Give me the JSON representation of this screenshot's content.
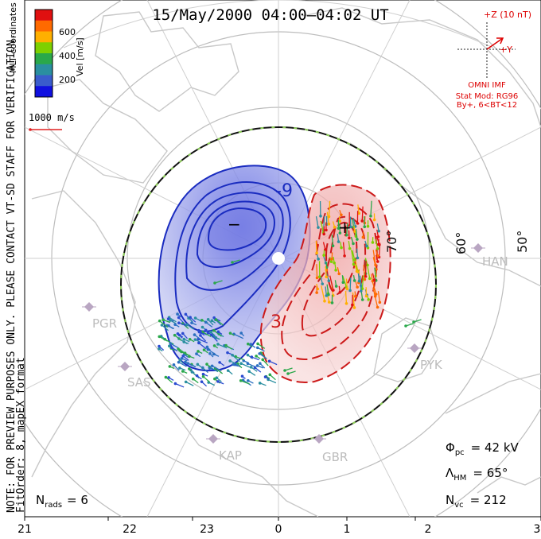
{
  "title": "15/May/2000 04:00–04:02 UT",
  "coord_label": "MLT coordinates",
  "colorbar": {
    "axis_label": "Vel [m/s]",
    "ticks": [
      "600",
      "400",
      "200"
    ],
    "colors": [
      "#e01010",
      "#ff6a00",
      "#ffb000",
      "#7ed000",
      "#2aa84a",
      "#2a8fa0",
      "#3a5ccc",
      "#1010e0"
    ]
  },
  "ref_vector": {
    "label": "1000 m/s",
    "color": "#e02020"
  },
  "imf": {
    "z_label": "+Z (10 nT)",
    "y_label": "+Y",
    "source": "OMNI IMF",
    "model": "Stat Mod: RG96",
    "condition": "By+, 6<BT<12",
    "color": "#dd0000"
  },
  "side_note": {
    "line1": "NOTE: FOR PREVIEW PURPOSES ONLY. PLEASE CONTACT VT-SD STAFF FOR VERIFICATION.",
    "line2": "FitOrder: 8, mapEX format"
  },
  "lat_labels": [
    "70°",
    "60°",
    "50°"
  ],
  "stations": [
    "PGR",
    "SAS",
    "KAP",
    "GBR",
    "PYK",
    "HAN"
  ],
  "contour_labels": {
    "neg": "-9",
    "pos": "3"
  },
  "cell_markers": {
    "min": "−",
    "max": "+"
  },
  "stats": {
    "nrads_sym": "N",
    "nrads_sub": "rads",
    "nrads_val": "= 6",
    "phi_sym": "Φ",
    "phi_sub": "pc",
    "phi_val": "= 42 kV",
    "lam_sym": "Λ",
    "lam_sub": "HM",
    "lam_val": "= 65°",
    "nvc_sym": "N",
    "nvc_sub": "vc",
    "nvc_val": "= 212"
  },
  "mlt_ticks": [
    "21",
    "22",
    "23",
    "0",
    "1",
    "2",
    "3"
  ],
  "colors": {
    "neg_contour": "#1a2cc0",
    "pos_contour": "#cc1a1a",
    "neg_fill": "#3c49d6",
    "pos_fill": "#e07a7a",
    "grid": "#bdbdbd",
    "land": "#c8c8c8",
    "station": "#b9a6c2",
    "boundary": "#111111",
    "boundary_dash": "#8fd05a"
  }
}
